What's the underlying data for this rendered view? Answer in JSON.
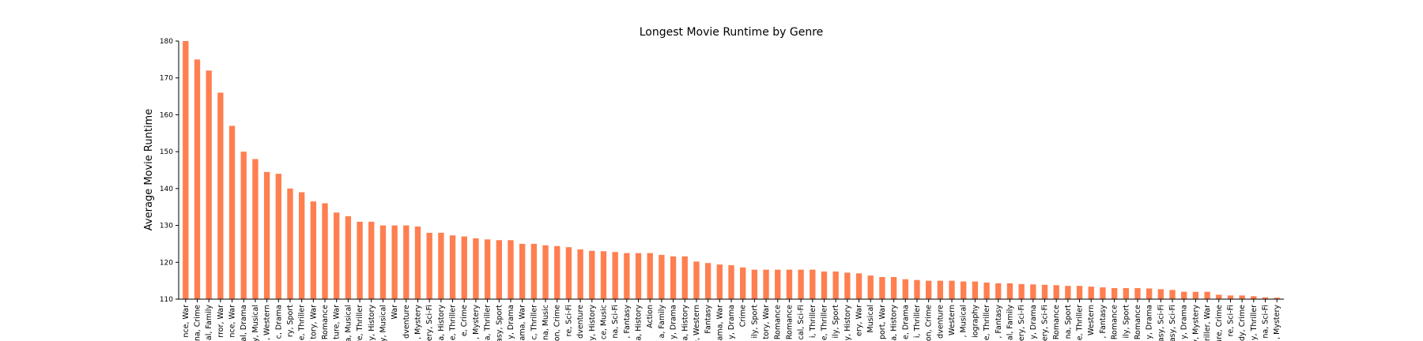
{
  "chart_data": {
    "type": "bar",
    "title": "Longest Movie Runtime by Genre",
    "ylabel": "Average Movie Runtime",
    "color": "#ff7f50",
    "categories": [
      "nce, War",
      "na, Crime",
      "al, Family",
      "rror, War",
      "nce, War",
      "al, Drama",
      "y, Musical",
      ", Western",
      "c, Drama",
      "ry, Sport",
      "e, Thriller",
      "tory, War",
      "Romance",
      "ture, War",
      "a, Musical",
      "ure, Thriller",
      "y, History",
      "y, Musical",
      "War",
      "dventure",
      ", Mystery",
      "ery, Sci-Fi",
      "a, History",
      "e, Thriller",
      "e, Crime",
      ", Mystery",
      "a, Thriller",
      "asy, Sport",
      "y, Drama",
      "ama, War",
      "c, Thriller",
      "na, Music",
      "on, Crime",
      "re, Sci-Fi",
      "dventure",
      "y, History",
      "ce, Music",
      "na, Sci-Fi",
      ", Fantasy",
      "a, History",
      "Action",
      "a, Family",
      "y, Drama",
      "a, History",
      "e, Western",
      "Fantasy",
      "ama, War",
      "y, Drama",
      "Crime",
      "ily, Sport",
      "tory, War",
      "Romance",
      "Romance",
      "cal, Sci-Fi",
      "i, Thriller",
      "e, Thriller",
      "ily, Sport",
      "y, History",
      "ery, War",
      "Musical",
      "port, War",
      "a, History",
      "e, Drama",
      "i, Thriller",
      "on, Crime",
      "dventure",
      "Western",
      ", Musical",
      "iography",
      "e, Thriller",
      ", Fantasy",
      "al, Family",
      "ery, Sci-Fi",
      "y, Drama",
      "ery, Sci-Fi",
      "Romance",
      "na, Sport",
      "e, Thriller",
      "Western",
      ", Fantasy",
      "Romance",
      "ily, Sport",
      "Romance",
      "y, Drama",
      "asy, Sci-Fi",
      "asy, Sci-Fi",
      "y, Drama",
      "y, Mystery",
      "hriller, War",
      "ure, Crime",
      "re, Sci-Fi",
      "dy, Crime",
      "y, Thriller",
      "na, Sci-Fi",
      ", Mystery"
    ],
    "values": [
      180,
      175,
      172,
      166,
      157,
      150,
      148,
      144.5,
      144,
      140,
      139,
      136.5,
      136,
      133.5,
      132.5,
      131,
      131,
      130,
      130,
      130,
      129.7,
      128,
      128,
      127.3,
      127,
      126.5,
      126.2,
      126,
      126,
      125,
      125,
      124.6,
      124.4,
      124.1,
      123.5,
      123.1,
      123,
      122.8,
      122.5,
      122.5,
      122.5,
      122,
      121.6,
      121.6,
      120.2,
      119.8,
      119.4,
      119.2,
      118.6,
      118,
      118,
      118,
      118,
      118,
      118,
      117.5,
      117.5,
      117.2,
      117,
      116.4,
      116,
      116,
      115.4,
      115.2,
      115,
      115,
      115,
      114.8,
      114.8,
      114.5,
      114.3,
      114.3,
      114.1,
      114,
      113.9,
      113.8,
      113.6,
      113.6,
      113.4,
      113.2,
      113,
      113,
      113,
      112.9,
      112.7,
      112.5,
      112,
      112,
      112,
      111.2,
      111,
      111,
      110.8,
      110.5,
      110.4
    ],
    "ylim": [
      110,
      180
    ],
    "yticks": [
      110,
      120,
      130,
      140,
      150,
      160,
      170,
      180
    ]
  }
}
